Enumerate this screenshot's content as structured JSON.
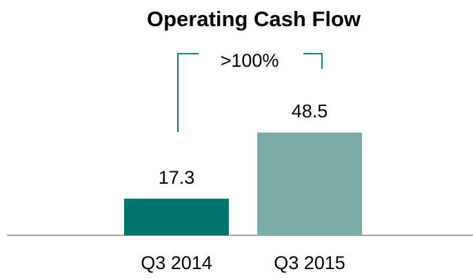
{
  "chart_data": {
    "type": "bar",
    "title": "Operating Cash Flow",
    "categories": [
      "Q3 2014",
      "Q3 2015"
    ],
    "values": [
      17.3,
      48.5
    ],
    "colors": [
      "#00766b",
      "#7aaba6"
    ],
    "annotation": ">100%"
  }
}
